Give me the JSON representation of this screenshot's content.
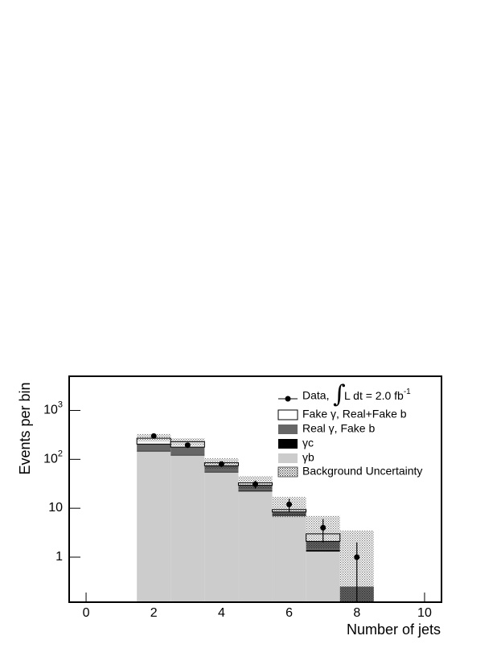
{
  "chart_data": {
    "type": "histogram",
    "xlabel": "Number of jets",
    "ylabel": "Events per bin",
    "bins": [
      1.5,
      2.5,
      3.5,
      4.5,
      5.5,
      6.5,
      7.5,
      8.5
    ],
    "series": [
      {
        "name": "Fake γ, Real+Fake b",
        "color": "#ffffff",
        "values": [
          65,
          52,
          11,
          3.5,
          1,
          0.9,
          0
        ]
      },
      {
        "name": "Real γ, Fake b",
        "color": "#666666",
        "values": [
          55,
          54,
          18,
          6.5,
          1.1,
          0.7,
          0.25
        ]
      },
      {
        "name": "γc",
        "color": "#000000",
        "values": [
          5,
          4,
          2,
          1,
          0.3,
          0.1,
          0
        ]
      },
      {
        "name": "γb",
        "color": "#cccccc",
        "values": [
          145,
          120,
          54,
          22,
          7,
          1.3,
          0
        ]
      }
    ],
    "uncertainty": {
      "name": "Background Uncertainty",
      "low": [
        230,
        190,
        65,
        25,
        6.5,
        1.5,
        0.12
      ],
      "high": [
        330,
        270,
        105,
        45,
        17,
        7,
        3.5
      ]
    },
    "data": {
      "name": "Data,",
      "lumi": "L dt = 2.0 fb",
      "lumi_exp": "-1",
      "color": "#000000",
      "x": [
        2,
        3,
        4,
        5,
        6,
        7,
        8
      ],
      "values": [
        300,
        195,
        80,
        31,
        12,
        4,
        1
      ],
      "error": [
        17.3,
        14,
        8.9,
        5.6,
        3.5,
        2,
        1
      ]
    },
    "xlim": [
      -0.5,
      10.5
    ],
    "xticks": [
      0,
      2,
      4,
      6,
      8,
      10
    ],
    "ylim": [
      0.12,
      5000
    ],
    "log_y": true,
    "yticks": [
      {
        "value": 1,
        "label": "1"
      },
      {
        "value": 10,
        "label": "10"
      },
      {
        "value": 100,
        "label": "10",
        "exponent": "2"
      },
      {
        "value": 1000,
        "label": "10",
        "exponent": "3"
      }
    ]
  }
}
